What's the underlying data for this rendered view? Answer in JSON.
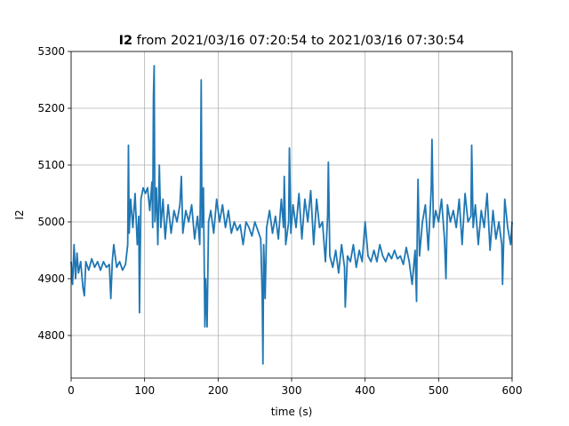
{
  "chart_data": {
    "type": "line",
    "title_variable": "I2",
    "title": "from 2021/03/16 07:20:54 to 2021/03/16 07:30:54",
    "xlabel": "time (s)",
    "ylabel": "I2",
    "xlim": [
      0,
      600
    ],
    "xticks": [
      0,
      100,
      200,
      300,
      400,
      500,
      600
    ],
    "ylim": [
      4725,
      5300
    ],
    "yticks": [
      4800,
      4900,
      5000,
      5100,
      5200,
      5300
    ],
    "grid": true,
    "series": [
      {
        "name": "I2",
        "color": "#1f77b4",
        "x": [
          0,
          2,
          4,
          6,
          8,
          10,
          13,
          16,
          18,
          20,
          24,
          28,
          32,
          36,
          40,
          44,
          48,
          52,
          54,
          56,
          58,
          62,
          66,
          70,
          74,
          77,
          78,
          79,
          81,
          84,
          87,
          90,
          92,
          93,
          95,
          98,
          101,
          104,
          107,
          110,
          111,
          112,
          113,
          114,
          116,
          118,
          120,
          122,
          125,
          128,
          132,
          136,
          140,
          144,
          148,
          150,
          152,
          156,
          160,
          164,
          168,
          172,
          175,
          176,
          177,
          178,
          180,
          182,
          183,
          185,
          187,
          190,
          194,
          198,
          202,
          206,
          210,
          214,
          218,
          222,
          226,
          230,
          234,
          238,
          242,
          246,
          250,
          254,
          258,
          260,
          261,
          262,
          264,
          266,
          270,
          274,
          278,
          282,
          286,
          289,
          290,
          292,
          296,
          297,
          299,
          302,
          306,
          310,
          314,
          318,
          322,
          326,
          330,
          334,
          338,
          342,
          346,
          349,
          350,
          352,
          356,
          360,
          364,
          368,
          372,
          373,
          376,
          380,
          384,
          388,
          392,
          396,
          400,
          404,
          408,
          412,
          416,
          420,
          424,
          428,
          432,
          436,
          440,
          444,
          448,
          452,
          456,
          460,
          464,
          468,
          470,
          471,
          472,
          474,
          478,
          482,
          486,
          490,
          491,
          493,
          496,
          500,
          504,
          508,
          510,
          512,
          516,
          520,
          524,
          528,
          532,
          536,
          540,
          544,
          545,
          547,
          550,
          554,
          558,
          562,
          566,
          570,
          574,
          578,
          582,
          586,
          587,
          590,
          594,
          598,
          600
        ],
        "values": [
          4930,
          4890,
          4960,
          4900,
          4945,
          4910,
          4930,
          4885,
          4870,
          4930,
          4915,
          4935,
          4920,
          4930,
          4915,
          4930,
          4920,
          4925,
          4865,
          4930,
          4960,
          4920,
          4930,
          4915,
          4925,
          4960,
          5135,
          4980,
          5040,
          4990,
          5050,
          4960,
          5010,
          4840,
          5040,
          5060,
          5050,
          5060,
          5020,
          5070,
          4990,
          5220,
          5275,
          5000,
          5060,
          4960,
          5100,
          4990,
          5040,
          4970,
          5030,
          4980,
          5020,
          5000,
          5030,
          5080,
          4980,
          5020,
          5000,
          5030,
          4970,
          5010,
          4960,
          5060,
          5250,
          4990,
          5060,
          4815,
          4900,
          4815,
          5000,
          5020,
          4980,
          5040,
          5000,
          5030,
          4990,
          5020,
          4980,
          5000,
          4985,
          4995,
          4960,
          5000,
          4990,
          4975,
          5000,
          4985,
          4970,
          4870,
          4750,
          4960,
          4865,
          4990,
          5020,
          4980,
          5010,
          4970,
          5040,
          4990,
          5080,
          4960,
          5000,
          5130,
          4980,
          5030,
          4990,
          5050,
          4970,
          5040,
          5000,
          5055,
          4960,
          5040,
          4990,
          5000,
          4930,
          5010,
          5105,
          4940,
          4920,
          4950,
          4910,
          4960,
          4920,
          4850,
          4940,
          4930,
          4960,
          4920,
          4950,
          4930,
          5000,
          4940,
          4930,
          4950,
          4930,
          4960,
          4940,
          4930,
          4945,
          4935,
          4950,
          4935,
          4940,
          4925,
          4955,
          4930,
          4890,
          4950,
          4860,
          4990,
          5075,
          4940,
          5000,
          5030,
          4950,
          5060,
          5145,
          4990,
          5020,
          5000,
          5040,
          4970,
          4900,
          5030,
          5000,
          5020,
          4990,
          5040,
          4960,
          5050,
          5000,
          5010,
          5135,
          4990,
          5030,
          4960,
          5020,
          4990,
          5050,
          4950,
          5020,
          4970,
          5000,
          4960,
          4890,
          5040,
          4990,
          4960,
          5000
        ]
      }
    ]
  }
}
